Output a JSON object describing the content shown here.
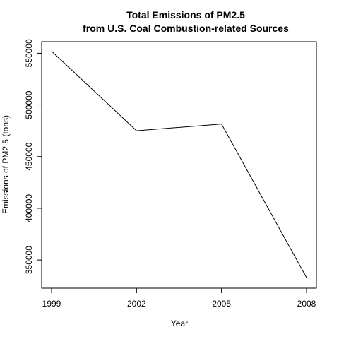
{
  "chart_data": {
    "type": "line",
    "title": "Total Emissions of PM2.5",
    "subtitle": "from U.S. Coal Combustion-related Sources",
    "xlabel": "Year",
    "ylabel": "Emissions of PM2.5 (tons)",
    "x": [
      1999,
      2002,
      2005,
      2008
    ],
    "x_tick_labels": [
      "1999",
      "2002",
      "2005",
      "2008"
    ],
    "xlim": [
      1999,
      2008
    ],
    "ylim": [
      333000,
      553000
    ],
    "y_ticks": [
      350000,
      400000,
      450000,
      500000,
      550000
    ],
    "y_tick_labels": [
      "350000",
      "400000",
      "450000",
      "500000",
      "550000"
    ],
    "series": [
      {
        "values": [
          552000,
          475000,
          481500,
          333000
        ],
        "color": "#000000"
      }
    ],
    "grid": false,
    "legend": "none"
  }
}
